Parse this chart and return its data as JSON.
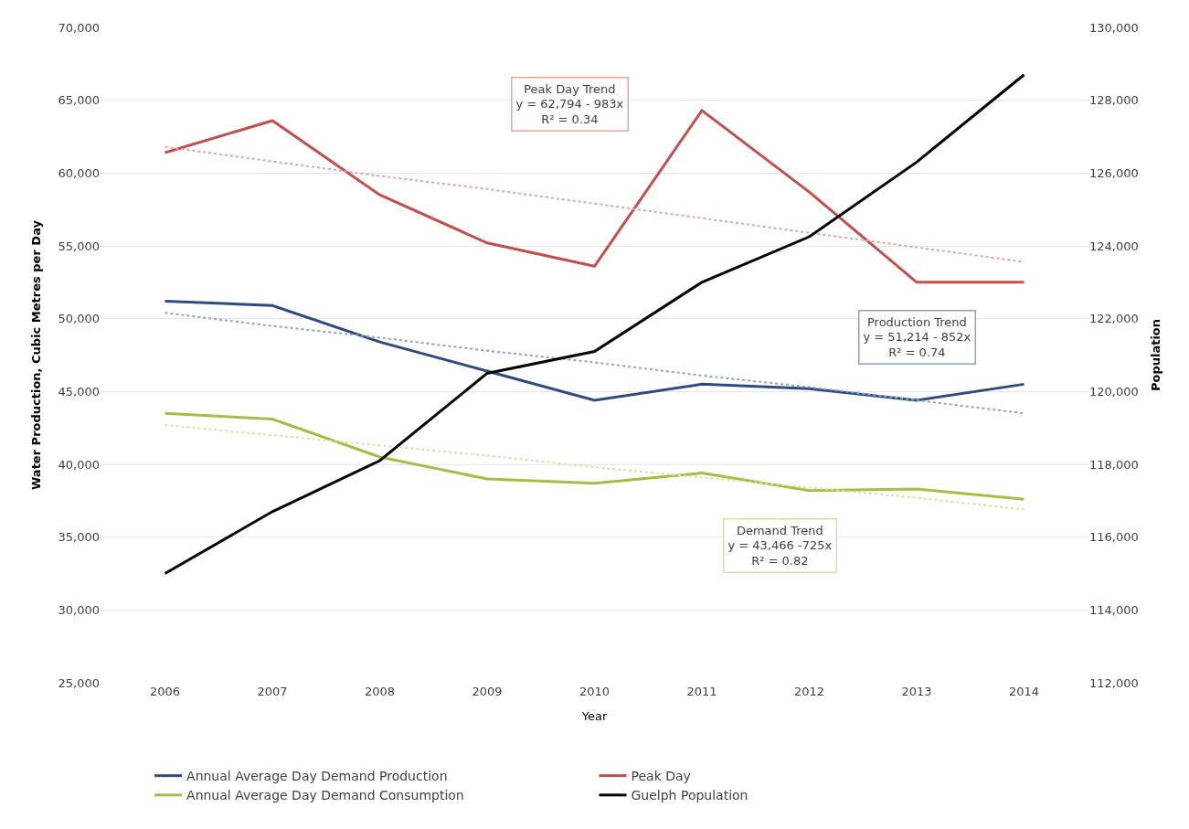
{
  "chart_data": {
    "type": "line",
    "xlabel": "Year",
    "ylabel": "Water Production, Cubic Metres per Day",
    "y2label": "Population",
    "categories": [
      "2006",
      "2007",
      "2008",
      "2009",
      "2010",
      "2011",
      "2012",
      "2013",
      "2014"
    ],
    "series": [
      {
        "name": "Annual Average Day Demand Production",
        "color": "#2f4b7c",
        "values": [
          51200,
          50900,
          48400,
          46400,
          44400,
          45500,
          45200,
          44400,
          45500
        ]
      },
      {
        "name": "Peak Day",
        "color": "#c0504d",
        "values": [
          61400,
          63600,
          58500,
          55200,
          53600,
          64300,
          58700,
          52500,
          52500
        ]
      },
      {
        "name": "Annual Average Day Demand Consumption",
        "color": "#a4be45",
        "values": [
          43500,
          43100,
          40500,
          39000,
          38700,
          39400,
          38200,
          38300,
          37600
        ]
      },
      {
        "name": "Guelph Population",
        "color": "#000000",
        "axis": "y2",
        "values": [
          115000,
          116700,
          118100,
          120500,
          121100,
          123000,
          124250,
          126300,
          128700
        ]
      },
      {
        "color": "#e8a0a0",
        "line_style": "dotted",
        "values": [
          61800,
          60800,
          59800,
          58900,
          57900,
          56900,
          55900,
          54900,
          53900
        ]
      },
      {
        "color": "#8fa0c0",
        "line_style": "dotted",
        "values": [
          50400,
          49500,
          48700,
          47800,
          47000,
          46100,
          45300,
          44400,
          43500
        ]
      },
      {
        "color": "#d4e0a8",
        "line_style": "dotted",
        "values": [
          42700,
          42000,
          41300,
          40600,
          39800,
          39100,
          38400,
          37700,
          36900
        ]
      }
    ],
    "ylim": [
      25000,
      70000
    ],
    "yticks": [
      {
        "value": 25000,
        "label": "25,000"
      },
      {
        "value": 30000,
        "label": "30,000"
      },
      {
        "value": 35000,
        "label": "35,000"
      },
      {
        "value": 40000,
        "label": "40,000"
      },
      {
        "value": 45000,
        "label": "45,000"
      },
      {
        "value": 50000,
        "label": "50,000"
      },
      {
        "value": 55000,
        "label": "55,000"
      },
      {
        "value": 60000,
        "label": "60,000"
      },
      {
        "value": 65000,
        "label": "65,000"
      },
      {
        "value": 70000,
        "label": "70,000"
      }
    ],
    "y2lim": [
      112000,
      130000
    ],
    "y2ticks": [
      {
        "value": 112000,
        "label": "112,000"
      },
      {
        "value": 114000,
        "label": "114,000"
      },
      {
        "value": 116000,
        "label": "116,000"
      },
      {
        "value": 118000,
        "label": "118,000"
      },
      {
        "value": 120000,
        "label": "120,000"
      },
      {
        "value": 122000,
        "label": "122,000"
      },
      {
        "value": 124000,
        "label": "124,000"
      },
      {
        "value": 126000,
        "label": "126,000"
      },
      {
        "value": 128000,
        "label": "128,000"
      },
      {
        "value": 130000,
        "label": "130,000"
      }
    ],
    "annotations": [
      "Peak Day Trend\ny = 62,794 - 983x\nR² = 0.34",
      "Production Trend\ny = 51,214 - 852x\nR² = 0.74",
      "Demand Trend\ny = 43,466 -725x\nR² = 0.82"
    ],
    "grid": "y",
    "legend": "bottom",
    "line_style": "solid",
    "marker": "none"
  }
}
